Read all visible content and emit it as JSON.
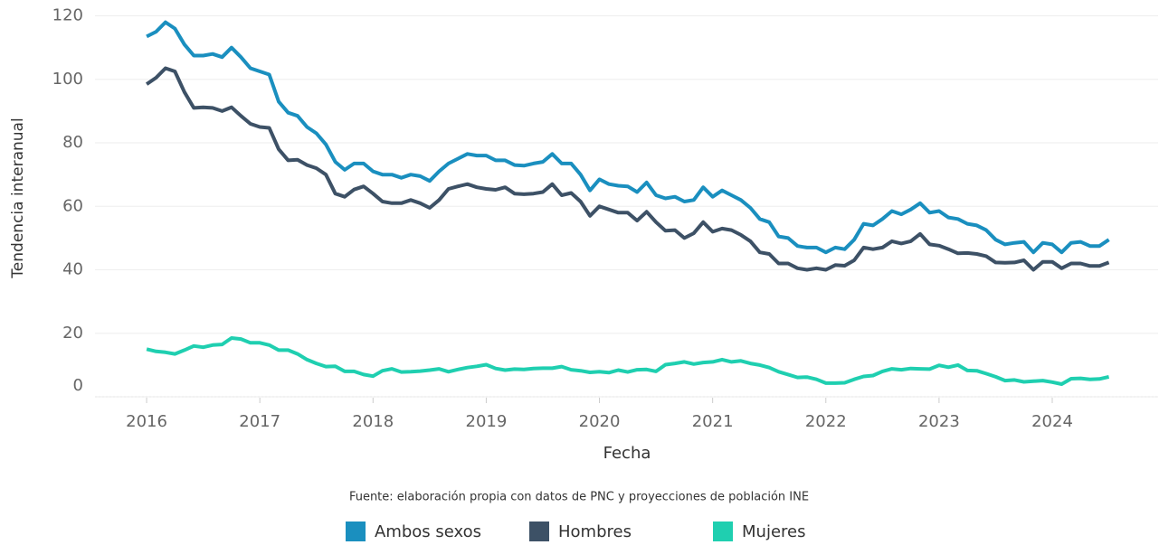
{
  "chart_data": {
    "type": "line",
    "x_label": "Fecha",
    "y_label": "Tendencia interanual",
    "caption": "Fuente: elaboración propia con datos de PNC y proyecciones de población INE",
    "x": [
      2016,
      2016.0833,
      2016.1667,
      2016.25,
      2016.3333,
      2016.4167,
      2016.5,
      2016.5833,
      2016.6667,
      2016.75,
      2016.8333,
      2016.9167,
      2017,
      2017.0833,
      2017.1667,
      2017.25,
      2017.3333,
      2017.4167,
      2017.5,
      2017.5833,
      2017.6667,
      2017.75,
      2017.8333,
      2017.9167,
      2018,
      2018.0833,
      2018.1667,
      2018.25,
      2018.3333,
      2018.4167,
      2018.5,
      2018.5833,
      2018.6667,
      2018.75,
      2018.8333,
      2018.9167,
      2019,
      2019.0833,
      2019.1667,
      2019.25,
      2019.3333,
      2019.4167,
      2019.5,
      2019.5833,
      2019.6667,
      2019.75,
      2019.8333,
      2019.9167,
      2020,
      2020.0833,
      2020.1667,
      2020.25,
      2020.3333,
      2020.4167,
      2020.5,
      2020.5833,
      2020.6667,
      2020.75,
      2020.8333,
      2020.9167,
      2021,
      2021.0833,
      2021.1667,
      2021.25,
      2021.3333,
      2021.4167,
      2021.5,
      2021.5833,
      2021.6667,
      2021.75,
      2021.8333,
      2021.9167,
      2022,
      2022.0833,
      2022.1667,
      2022.25,
      2022.3333,
      2022.4167,
      2022.5,
      2022.5833,
      2022.6667,
      2022.75,
      2022.8333,
      2022.9167,
      2023,
      2023.0833,
      2023.1667,
      2023.25,
      2023.3333,
      2023.4167,
      2023.5,
      2023.5833,
      2023.6667,
      2023.75,
      2023.8333,
      2023.9167,
      2024,
      2024.0833,
      2024.1667,
      2024.25,
      2024.3333,
      2024.4167,
      2024.5
    ],
    "series": [
      {
        "name": "Ambos sexos",
        "color": "#1a8fbf",
        "values": [
          113.5,
          115,
          118,
          116,
          111,
          107.5,
          107.5,
          108,
          107,
          110,
          107,
          103.5,
          102.5,
          101.5,
          93,
          89.5,
          88.5,
          85,
          83,
          79.5,
          74,
          71.5,
          73.5,
          73.5,
          71,
          70,
          70,
          69,
          70,
          69.5,
          68,
          71,
          73.5,
          75,
          76.5,
          76,
          76,
          74.5,
          74.5,
          73,
          72.8,
          73.5,
          74,
          76.5,
          73.5,
          73.5,
          70,
          65,
          68.5,
          67,
          66.5,
          66.3,
          64.5,
          67.5,
          63.5,
          62.5,
          63,
          61.5,
          62,
          66,
          63,
          65,
          63.5,
          62,
          59.5,
          56,
          55,
          50.5,
          50,
          47.5,
          47,
          47,
          45.5,
          47,
          46.5,
          49.5,
          54.5,
          54,
          56,
          58.5,
          57.5,
          59,
          61,
          58,
          58.5,
          56.5,
          56,
          54.5,
          54,
          52.5,
          49.5,
          48,
          48.5,
          48.8,
          45.5,
          48.5,
          48,
          45.5,
          48.5,
          48.8,
          47.5,
          47.5,
          49.5
        ]
      },
      {
        "name": "Hombres",
        "color": "#3d5166",
        "values": [
          98.5,
          100.5,
          103.5,
          102.5,
          96,
          91,
          91.2,
          91,
          90,
          91.2,
          88.5,
          86,
          85,
          84.7,
          78,
          74.5,
          74.7,
          73,
          72,
          70,
          64,
          63,
          65.3,
          66.3,
          64,
          61.5,
          61,
          61,
          62,
          61,
          59.5,
          62,
          65.5,
          66.3,
          67,
          66,
          65.5,
          65.2,
          66,
          64,
          63.8,
          64,
          64.5,
          67,
          63.5,
          64.2,
          61.5,
          57,
          60,
          59,
          58,
          58,
          55.5,
          58.3,
          55,
          52.3,
          52.5,
          50,
          51.5,
          55,
          52,
          53,
          52.5,
          51,
          49,
          45.5,
          45,
          42,
          42,
          40.5,
          40,
          40.5,
          40,
          41.5,
          41.3,
          43,
          47,
          46.5,
          47,
          49,
          48.3,
          49,
          51.3,
          48,
          47.6,
          46.5,
          45.2,
          45.3,
          45,
          44.3,
          42.3,
          42.2,
          42.3,
          43,
          40,
          42.5,
          42.5,
          40.5,
          42,
          42,
          41.2,
          41.2,
          42.3
        ]
      },
      {
        "name": "Mujeres",
        "color": "#1fcfb0",
        "values": [
          15,
          14.3,
          14,
          13.5,
          14.7,
          16,
          15.6,
          16.3,
          16.5,
          18.5,
          18.2,
          17,
          17,
          16.3,
          14.7,
          14.7,
          13.5,
          11.7,
          10.5,
          9.5,
          9.6,
          8,
          8,
          7,
          6.5,
          8.2,
          8.8,
          7.8,
          7.9,
          8.1,
          8.4,
          8.8,
          7.9,
          8.6,
          9.2,
          9.6,
          10.1,
          8.9,
          8.4,
          8.7,
          8.6,
          8.9,
          9,
          9,
          9.5,
          8.5,
          8.2,
          7.7,
          7.9,
          7.6,
          8.4,
          7.8,
          8.5,
          8.6,
          8,
          10.1,
          10.5,
          11,
          10.3,
          10.8,
          11,
          11.7,
          11,
          11.3,
          10.5,
          10,
          9.2,
          7.9,
          7,
          6.1,
          6.2,
          5.5,
          4.3,
          4.3,
          4.4,
          5.5,
          6.4,
          6.7,
          8,
          8.8,
          8.5,
          8.9,
          8.8,
          8.7,
          9.9,
          9.3,
          10,
          8.3,
          8.2,
          7.3,
          6.3,
          5.1,
          5.3,
          4.7,
          4.9,
          5.1,
          4.6,
          4,
          5.7,
          5.8,
          5.5,
          5.6,
          6.3
        ]
      }
    ],
    "xlim": [
      2015.544,
      2024.935
    ],
    "xticks": [
      2016,
      2017,
      2018,
      2019,
      2020,
      2021,
      2022,
      2023,
      2024
    ],
    "ylim": [
      0,
      125
    ],
    "yticks": [
      0,
      20,
      40,
      60,
      80,
      100,
      120
    ],
    "grid": true,
    "legend": "bottom"
  }
}
